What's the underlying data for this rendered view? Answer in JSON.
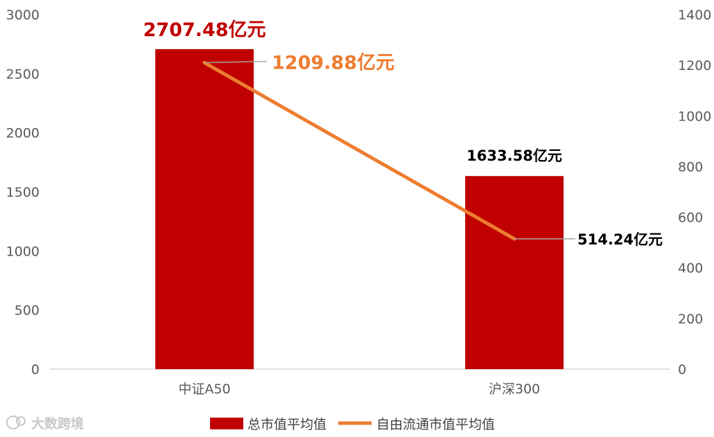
{
  "chart_data": {
    "type": "bar+line",
    "categories": [
      "中证A50",
      "沪深300"
    ],
    "series": [
      {
        "name": "总市值平均值",
        "kind": "bar",
        "axis": "left",
        "values": [
          2707.48,
          1633.58
        ],
        "labels": [
          "2707.48亿元",
          "1633.58亿元"
        ],
        "color": "#C00000",
        "label_colors": [
          "#C00000",
          "#000000"
        ]
      },
      {
        "name": "自由流通市值平均值",
        "kind": "line",
        "axis": "right",
        "values": [
          1209.88,
          514.24
        ],
        "labels": [
          "1209.88亿元",
          "514.24亿元"
        ],
        "color": "#ED7D31",
        "label_colors": [
          "#ED7D31",
          "#000000"
        ]
      }
    ],
    "y_left": {
      "min": 0,
      "max": 3000,
      "ticks": [
        0,
        500,
        1000,
        1500,
        2000,
        2500,
        3000
      ]
    },
    "y_right": {
      "min": 0,
      "max": 1400,
      "ticks": [
        0,
        200,
        400,
        600,
        800,
        1000,
        1200,
        1400
      ]
    },
    "legend_position": "bottom",
    "grid": false
  },
  "watermark": "大数跨境"
}
